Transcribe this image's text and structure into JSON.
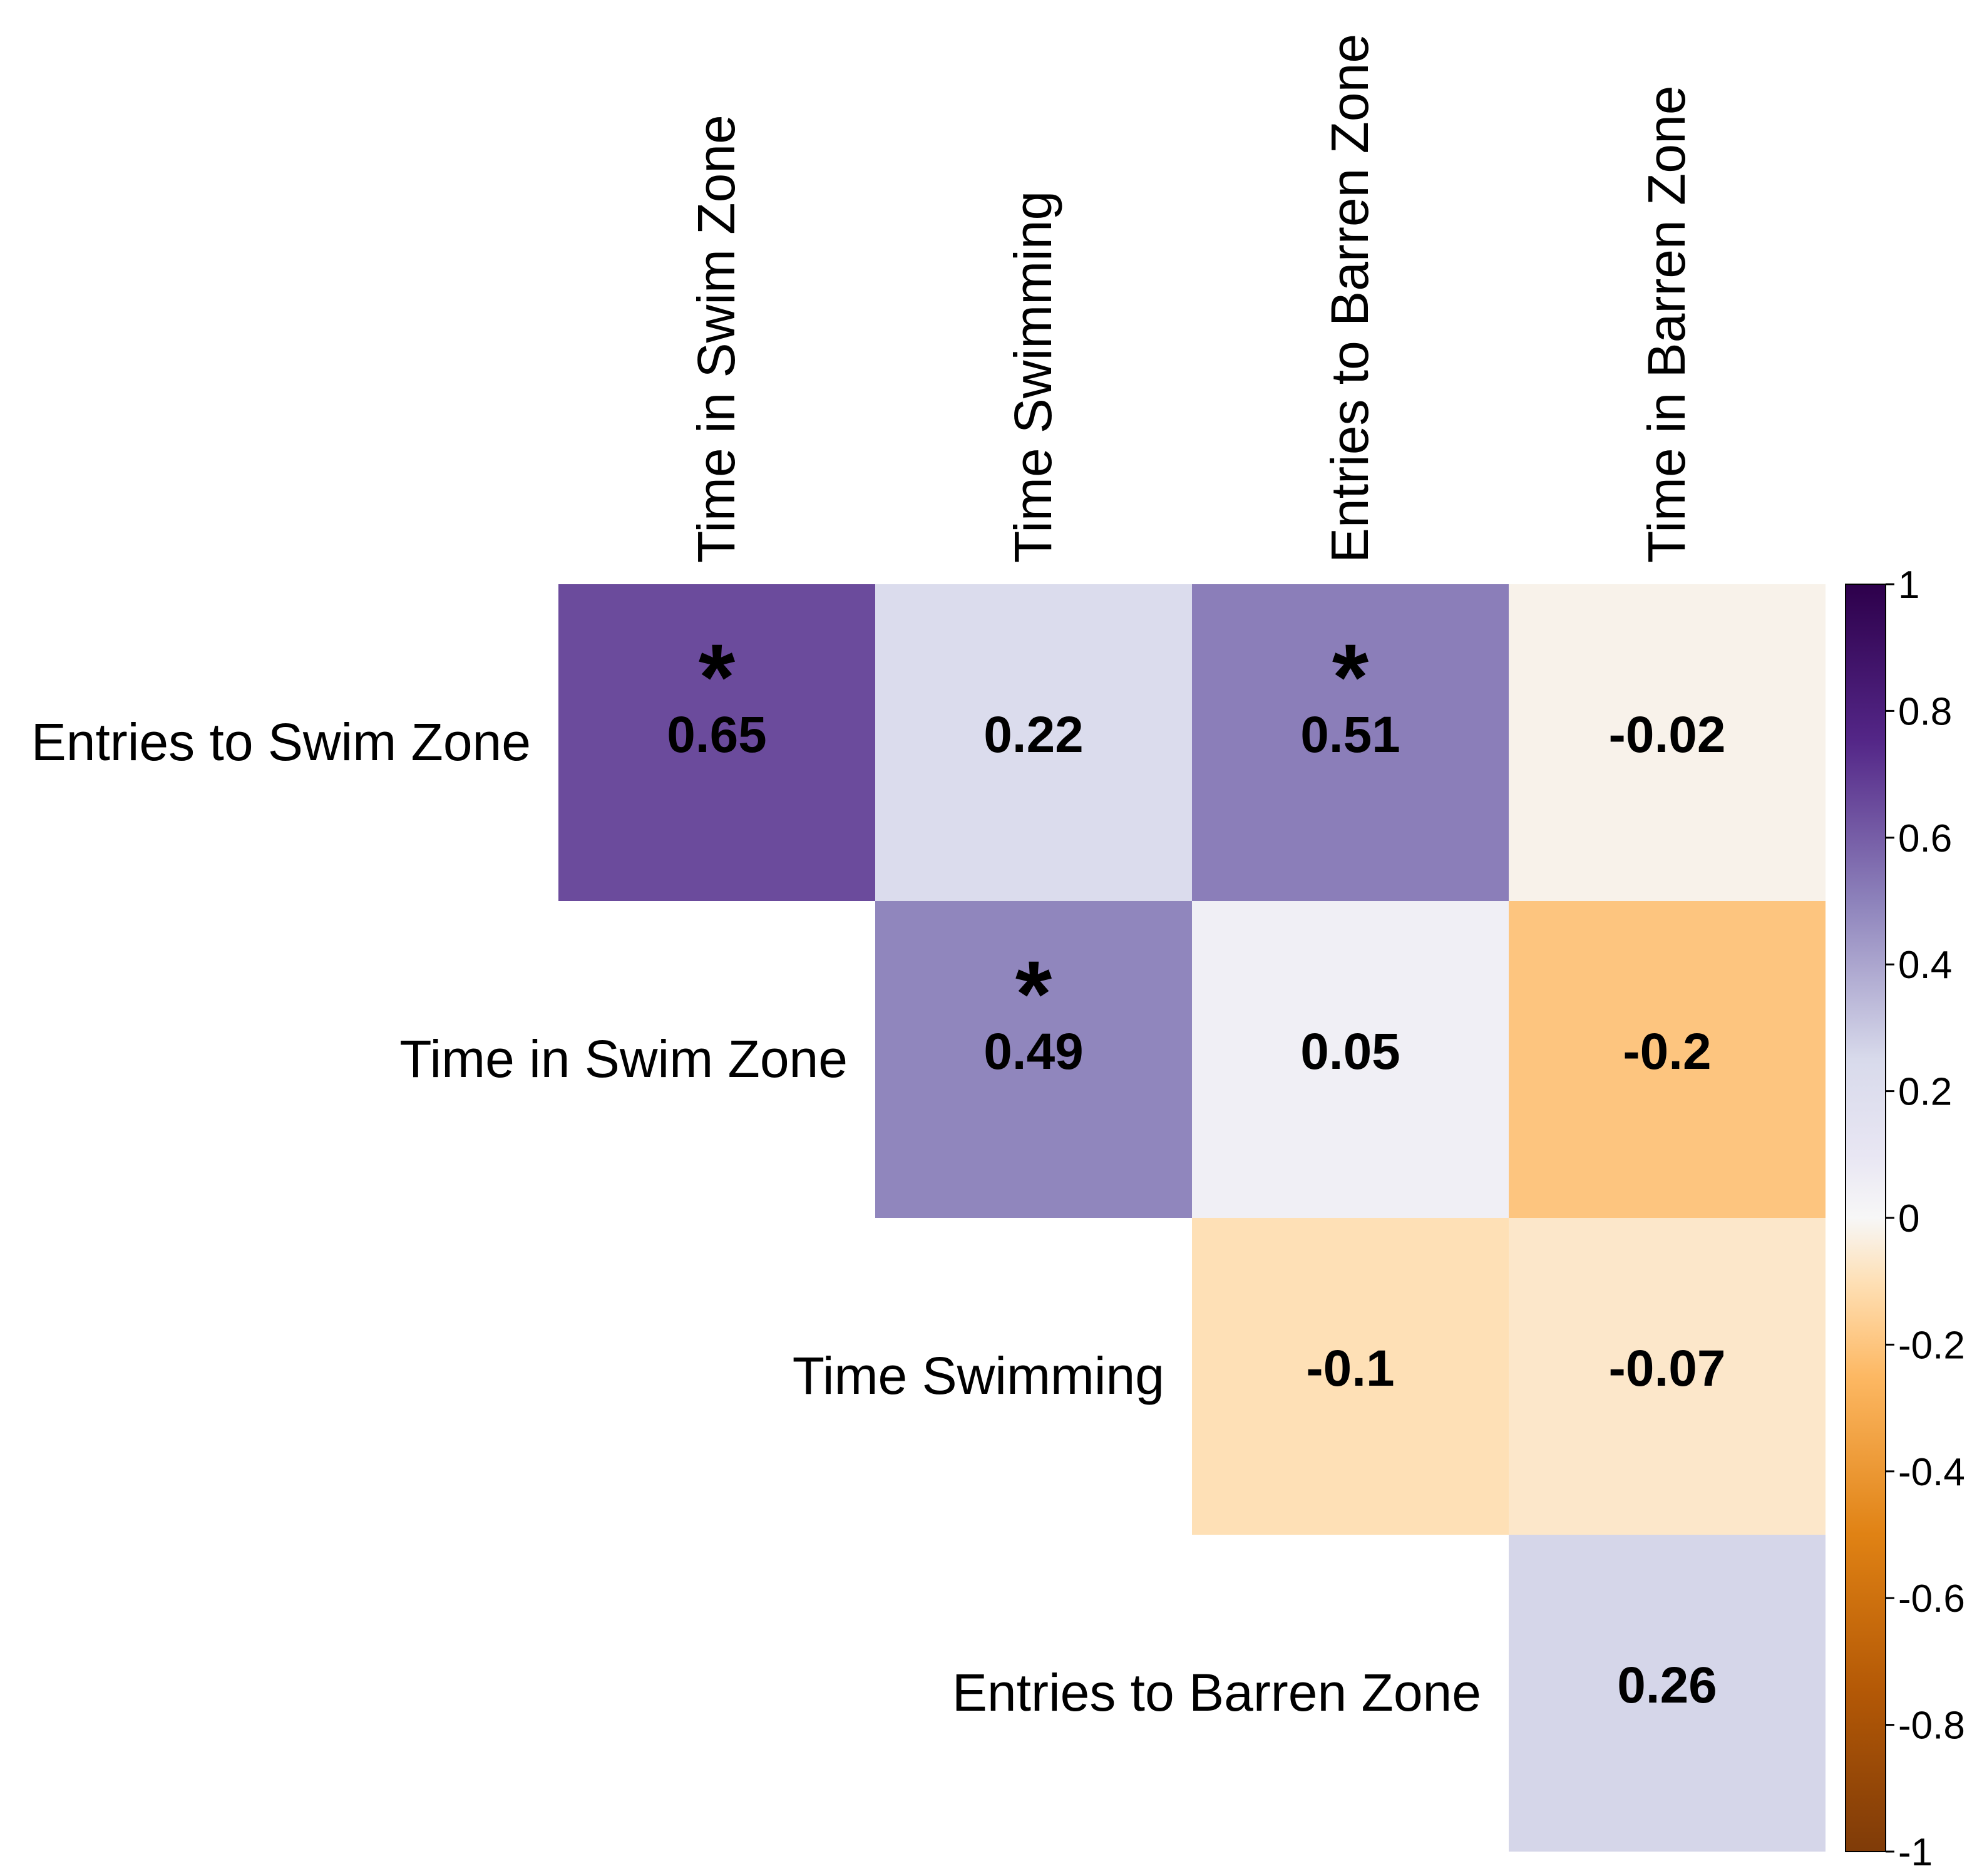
{
  "chart_data": {
    "type": "heatmap",
    "title": "",
    "columns": [
      "Time in Swim Zone",
      "Time Swimming",
      "Entries to Barren Zone",
      "Time in Barren Zone"
    ],
    "rows": [
      "Entries to Swim Zone",
      "Time in Swim Zone",
      "Time Swimming",
      "Entries to Barren Zone"
    ],
    "cells": [
      {
        "row": 0,
        "col": 0,
        "label": "0.65",
        "value": 0.65,
        "significant": true
      },
      {
        "row": 0,
        "col": 1,
        "label": "0.22",
        "value": 0.22,
        "significant": false
      },
      {
        "row": 0,
        "col": 2,
        "label": "0.51",
        "value": 0.51,
        "significant": true
      },
      {
        "row": 0,
        "col": 3,
        "label": "-0.02",
        "value": -0.02,
        "significant": false
      },
      {
        "row": 1,
        "col": 1,
        "label": "0.49",
        "value": 0.49,
        "significant": true
      },
      {
        "row": 1,
        "col": 2,
        "label": "0.05",
        "value": 0.05,
        "significant": false
      },
      {
        "row": 1,
        "col": 3,
        "label": "-0.2",
        "value": -0.2,
        "significant": false
      },
      {
        "row": 2,
        "col": 2,
        "label": "-0.1",
        "value": -0.1,
        "significant": false
      },
      {
        "row": 2,
        "col": 3,
        "label": "-0.07",
        "value": -0.07,
        "significant": false
      },
      {
        "row": 3,
        "col": 3,
        "label": "0.26",
        "value": 0.26,
        "significant": false
      }
    ],
    "significance_marker": "*",
    "colorbar": {
      "min": -1,
      "max": 1,
      "ticks": [
        {
          "value": 1,
          "label": "1"
        },
        {
          "value": 0.8,
          "label": "0.8"
        },
        {
          "value": 0.6,
          "label": "0.6"
        },
        {
          "value": 0.4,
          "label": "0.4"
        },
        {
          "value": 0.2,
          "label": "0.2"
        },
        {
          "value": 0,
          "label": "0"
        },
        {
          "value": -0.2,
          "label": "-0.2"
        },
        {
          "value": -0.4,
          "label": "-0.4"
        },
        {
          "value": -0.6,
          "label": "-0.6"
        },
        {
          "value": -0.8,
          "label": "-0.8"
        },
        {
          "value": -1,
          "label": "-1"
        }
      ],
      "stops": [
        {
          "value": -1,
          "color": "#7f3b08"
        },
        {
          "value": -0.75,
          "color": "#b35806"
        },
        {
          "value": -0.5,
          "color": "#e08214"
        },
        {
          "value": -0.25,
          "color": "#fdb863"
        },
        {
          "value": -0.1,
          "color": "#fee0b6"
        },
        {
          "value": 0,
          "color": "#f7f7f7"
        },
        {
          "value": 0.1,
          "color": "#e8e6f3"
        },
        {
          "value": 0.25,
          "color": "#d8daeb"
        },
        {
          "value": 0.5,
          "color": "#8d82bb"
        },
        {
          "value": 0.75,
          "color": "#542788"
        },
        {
          "value": 1,
          "color": "#2d004b"
        }
      ]
    }
  }
}
